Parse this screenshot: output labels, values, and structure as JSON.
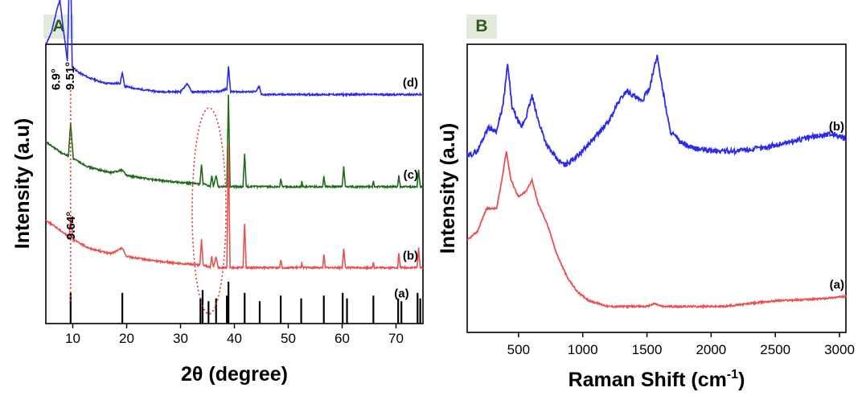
{
  "panels": {
    "a": "A",
    "b": "B"
  },
  "colors": {
    "red": "#e8504f",
    "green": "#1f6b1a",
    "blue": "#2b2be8",
    "ref": "#000000",
    "dotted": "#e83030"
  },
  "chart_data": [
    {
      "type": "line",
      "panel": "A",
      "xlabel": "2θ (degree)",
      "ylabel": "Intensity (a.u)",
      "xlim": [
        5,
        75
      ],
      "xticks": [
        10,
        20,
        30,
        40,
        50,
        60,
        70
      ],
      "grid": false,
      "annotations": [
        "6.9°",
        "9.51°",
        "9.64°"
      ],
      "series": [
        {
          "label": "(d)",
          "color": "blue",
          "offset": 0.82,
          "points": [
            [
              5,
              0.18
            ],
            [
              6,
              0.22
            ],
            [
              7,
              0.3
            ],
            [
              7.6,
              0.34
            ],
            [
              8.2,
              0.24
            ],
            [
              9,
              0.12
            ],
            [
              9.51,
              0.56
            ],
            [
              9.9,
              0.1
            ],
            [
              11,
              0.08
            ],
            [
              13,
              0.06
            ],
            [
              16,
              0.04
            ],
            [
              18.8,
              0.04
            ],
            [
              19.2,
              0.08
            ],
            [
              19.6,
              0.03
            ],
            [
              22,
              0.02
            ],
            [
              26,
              0.01
            ],
            [
              30,
              0.01
            ],
            [
              31.3,
              0.04
            ],
            [
              32,
              0.01
            ],
            [
              35,
              0.01
            ],
            [
              37,
              0.01
            ],
            [
              38.6,
              0.02
            ],
            [
              38.9,
              0.1
            ],
            [
              39.3,
              0.01
            ],
            [
              44,
              0.01
            ],
            [
              44.6,
              0.03
            ],
            [
              45,
              0.0
            ],
            [
              75,
              0.0
            ]
          ],
          "peaks": [
            [
              9.51,
              "9.51°"
            ],
            [
              6.9,
              "6.9°"
            ]
          ]
        },
        {
          "label": "(c)",
          "color": "green",
          "offset": 0.49,
          "points": [
            [
              5,
              0.16
            ],
            [
              8,
              0.12
            ],
            [
              9.2,
              0.11
            ],
            [
              9.6,
              0.23
            ],
            [
              10.1,
              0.1
            ],
            [
              13,
              0.07
            ],
            [
              17,
              0.05
            ],
            [
              19.2,
              0.06
            ],
            [
              20,
              0.04
            ],
            [
              25,
              0.025
            ],
            [
              30,
              0.015
            ],
            [
              33.6,
              0.01
            ],
            [
              33.9,
              0.08
            ],
            [
              34.2,
              0.01
            ],
            [
              35.5,
              0.0
            ],
            [
              35.8,
              0.04
            ],
            [
              36.1,
              0.0
            ],
            [
              36.6,
              0.04
            ],
            [
              37,
              0.0
            ],
            [
              38.6,
              0.0
            ],
            [
              38.9,
              0.33
            ],
            [
              39.2,
              0.0
            ],
            [
              41.6,
              0.0
            ],
            [
              41.9,
              0.12
            ],
            [
              42.2,
              0.0
            ],
            [
              48.4,
              0.0
            ],
            [
              48.6,
              0.03
            ],
            [
              48.9,
              0.0
            ],
            [
              52.4,
              0.0
            ],
            [
              52.5,
              0.02
            ],
            [
              52.7,
              0.0
            ],
            [
              56.4,
              0.0
            ],
            [
              56.6,
              0.04
            ],
            [
              56.9,
              0.0
            ],
            [
              60,
              0.0
            ],
            [
              60.3,
              0.07
            ],
            [
              60.6,
              0.0
            ],
            [
              65.6,
              0.0
            ],
            [
              65.8,
              0.02
            ],
            [
              66,
              0.0
            ],
            [
              70.3,
              0.0
            ],
            [
              70.5,
              0.04
            ],
            [
              70.8,
              0.0
            ],
            [
              73.9,
              0.0
            ],
            [
              74.2,
              0.06
            ],
            [
              74.5,
              0.0
            ],
            [
              75,
              0.0
            ]
          ]
        },
        {
          "label": "(b)",
          "color": "red",
          "offset": 0.2,
          "points": [
            [
              5,
              0.17
            ],
            [
              8,
              0.13
            ],
            [
              9.3,
              0.11
            ],
            [
              9.64,
              0.18
            ],
            [
              10.1,
              0.1
            ],
            [
              13,
              0.07
            ],
            [
              17,
              0.05
            ],
            [
              19.2,
              0.07
            ],
            [
              20,
              0.04
            ],
            [
              25,
              0.025
            ],
            [
              30,
              0.015
            ],
            [
              33.6,
              0.01
            ],
            [
              33.9,
              0.1
            ],
            [
              34.2,
              0.01
            ],
            [
              35.5,
              0.0
            ],
            [
              35.8,
              0.04
            ],
            [
              36.1,
              0.0
            ],
            [
              36.6,
              0.04
            ],
            [
              37,
              0.0
            ],
            [
              38.6,
              0.0
            ],
            [
              38.9,
              0.44
            ],
            [
              39.2,
              0.0
            ],
            [
              41.6,
              0.0
            ],
            [
              41.9,
              0.16
            ],
            [
              42.2,
              0.0
            ],
            [
              48.4,
              0.0
            ],
            [
              48.6,
              0.03
            ],
            [
              48.9,
              0.0
            ],
            [
              52.4,
              0.0
            ],
            [
              52.5,
              0.02
            ],
            [
              52.7,
              0.0
            ],
            [
              56.4,
              0.0
            ],
            [
              56.6,
              0.05
            ],
            [
              56.9,
              0.0
            ],
            [
              60,
              0.0
            ],
            [
              60.3,
              0.07
            ],
            [
              60.6,
              0.0
            ],
            [
              65.6,
              0.0
            ],
            [
              65.8,
              0.02
            ],
            [
              66,
              0.0
            ],
            [
              70.3,
              0.0
            ],
            [
              70.5,
              0.05
            ],
            [
              70.8,
              0.0
            ],
            [
              73.9,
              0.0
            ],
            [
              74.2,
              0.07
            ],
            [
              74.5,
              0.0
            ],
            [
              75,
              0.0
            ]
          ],
          "peaks": [
            [
              9.64,
              "9.64°"
            ]
          ]
        }
      ],
      "reference": {
        "label": "(a)",
        "color": "ref",
        "sticks": [
          [
            9.6,
            0.11
          ],
          [
            19.2,
            0.11
          ],
          [
            33.7,
            0.09
          ],
          [
            34.1,
            0.12
          ],
          [
            35.2,
            0.08
          ],
          [
            36.6,
            0.09
          ],
          [
            38.6,
            0.1
          ],
          [
            38.9,
            0.15
          ],
          [
            41.9,
            0.11
          ],
          [
            44.7,
            0.08
          ],
          [
            48.6,
            0.1
          ],
          [
            52.4,
            0.09
          ],
          [
            56.6,
            0.1
          ],
          [
            60.1,
            0.11
          ],
          [
            60.9,
            0.09
          ],
          [
            65.8,
            0.1
          ],
          [
            70.4,
            0.09
          ],
          [
            71.0,
            0.08
          ],
          [
            74.0,
            0.11
          ],
          [
            74.5,
            0.09
          ]
        ]
      }
    },
    {
      "type": "line",
      "panel": "B",
      "xlabel": "Raman Shift (cm",
      "xlabel_sup": "-1",
      "xlabel_end": ")",
      "ylabel": "Intensity (a.u)",
      "xlim": [
        100,
        3050
      ],
      "xticks": [
        500,
        1000,
        1500,
        2000,
        2500,
        3000
      ],
      "grid": false,
      "series": [
        {
          "label": "(b)",
          "color": "blue",
          "offset": 0.56,
          "points": [
            [
              100,
              0.05
            ],
            [
              180,
              0.07
            ],
            [
              260,
              0.15
            ],
            [
              330,
              0.14
            ],
            [
              380,
              0.23
            ],
            [
              415,
              0.37
            ],
            [
              450,
              0.22
            ],
            [
              520,
              0.15
            ],
            [
              560,
              0.19
            ],
            [
              605,
              0.26
            ],
            [
              650,
              0.18
            ],
            [
              720,
              0.09
            ],
            [
              800,
              0.04
            ],
            [
              860,
              0.02
            ],
            [
              920,
              0.04
            ],
            [
              1000,
              0.07
            ],
            [
              1100,
              0.12
            ],
            [
              1200,
              0.17
            ],
            [
              1280,
              0.24
            ],
            [
              1340,
              0.28
            ],
            [
              1400,
              0.26
            ],
            [
              1460,
              0.24
            ],
            [
              1520,
              0.29
            ],
            [
              1580,
              0.4
            ],
            [
              1620,
              0.29
            ],
            [
              1680,
              0.14
            ],
            [
              1760,
              0.1
            ],
            [
              1850,
              0.08
            ],
            [
              2000,
              0.07
            ],
            [
              2200,
              0.07
            ],
            [
              2400,
              0.08
            ],
            [
              2600,
              0.1
            ],
            [
              2800,
              0.12
            ],
            [
              2950,
              0.13
            ],
            [
              3050,
              0.11
            ]
          ]
        },
        {
          "label": "(a)",
          "color": "red",
          "offset": 0.09,
          "points": [
            [
              100,
              0.23
            ],
            [
              180,
              0.26
            ],
            [
              250,
              0.34
            ],
            [
              330,
              0.34
            ],
            [
              370,
              0.44
            ],
            [
              405,
              0.54
            ],
            [
              440,
              0.44
            ],
            [
              500,
              0.38
            ],
            [
              560,
              0.4
            ],
            [
              605,
              0.44
            ],
            [
              650,
              0.36
            ],
            [
              720,
              0.29
            ],
            [
              800,
              0.18
            ],
            [
              880,
              0.1
            ],
            [
              960,
              0.05
            ],
            [
              1050,
              0.02
            ],
            [
              1200,
              0.0
            ],
            [
              1400,
              0.0
            ],
            [
              1500,
              0.0
            ],
            [
              1560,
              0.01
            ],
            [
              1620,
              0.0
            ],
            [
              1800,
              0.0
            ],
            [
              2100,
              0.0
            ],
            [
              2500,
              0.02
            ],
            [
              2800,
              0.025
            ],
            [
              3050,
              0.035
            ]
          ]
        }
      ]
    }
  ]
}
